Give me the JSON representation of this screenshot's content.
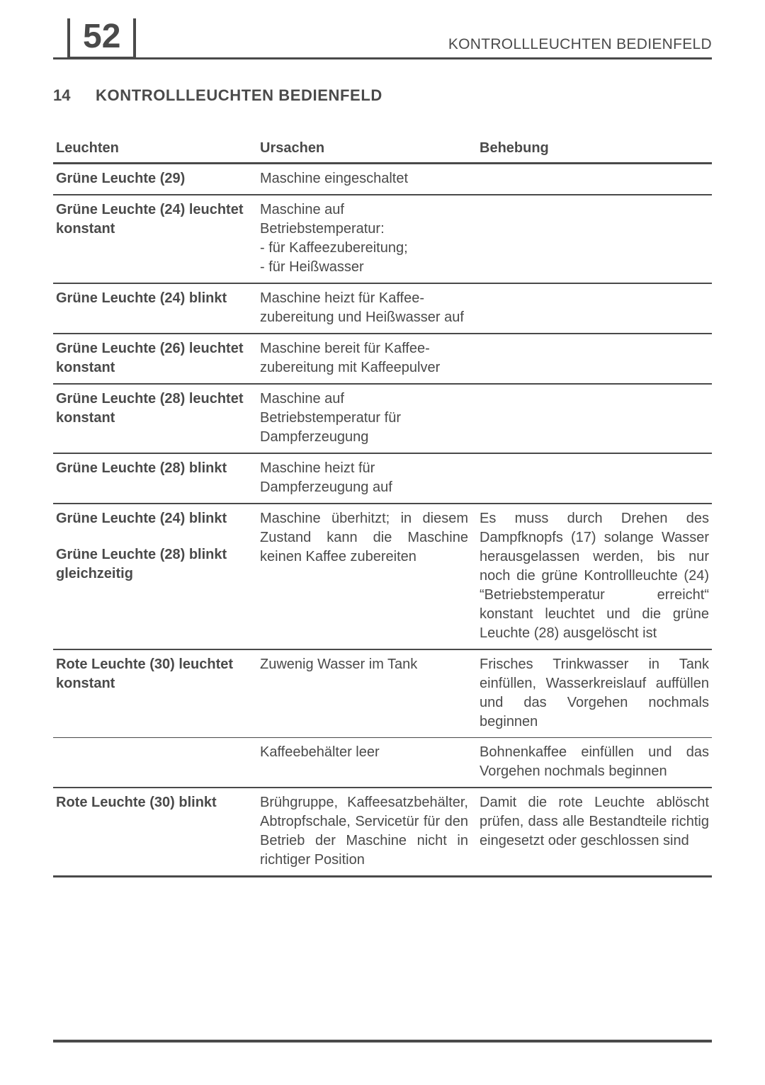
{
  "page_number": "52",
  "header_title": "KONTROLLLEUCHTEN BEDIENFELD",
  "section_number": "14",
  "section_title": "KONTROLLLEUCHTEN BEDIENFELD",
  "columns": {
    "c1": "Leuchten",
    "c2": "Ursachen",
    "c3": "Behebung"
  },
  "rows": [
    {
      "leuchten": "Grüne Leuchte (29)",
      "ursachen": "Maschine eingeschaltet",
      "behebung": ""
    },
    {
      "leuchten": "Grüne Leuchte (24) leuchtet konstant",
      "ursachen": "Maschine auf Betriebstemperatur:\n- für Kaffeezubereitung;\n- für Heißwasser",
      "behebung": ""
    },
    {
      "leuchten": "Grüne Leuchte (24) blinkt",
      "ursachen": "Maschine heizt für Kaffee-zubereitung und Heißwasser auf",
      "behebung": ""
    },
    {
      "leuchten": "Grüne Leuchte (26) leuchtet konstant",
      "ursachen": "Maschine bereit für Kaffee-zubereitung mit Kaffeepulver",
      "behebung": ""
    },
    {
      "leuchten": "Grüne Leuchte (28) leuchtet konstant",
      "ursachen": "Maschine auf Betriebstemperatur für Dampferzeugung",
      "behebung": ""
    },
    {
      "leuchten": "Grüne Leuchte (28) blinkt",
      "ursachen": "Maschine heizt für Dampferzeugung auf",
      "behebung": ""
    },
    {
      "leuchten_a": "Grüne Leuchte (24) blinkt",
      "leuchten_b": "Grüne Leuchte (28) blinkt gleichzeitig",
      "ursachen": "Maschine überhitzt; in diesem Zustand kann die Maschine keinen Kaffee zubereiten",
      "behebung": "Es muss durch Drehen des Dampfknopfs (17) solange Wasser herausgelassen werden, bis nur noch die grüne Kontrollleuchte (24) “Betriebstemperatur erreicht“ konstant leuchtet und die grüne Leuchte (28) ausgelöscht ist"
    },
    {
      "leuchten": "Rote Leuchte (30) leuchtet konstant",
      "ursachen": "Zuwenig Wasser im Tank",
      "behebung": "Frisches Trinkwasser in Tank einfüllen, Wasserkreislauf auffüllen und das Vorgehen nochmals beginnen"
    },
    {
      "leuchten": "",
      "ursachen": "Kaffeebehälter leer",
      "behebung": "Bohnenkaffee einfüllen und das Vorgehen nochmals beginnen"
    },
    {
      "leuchten": "Rote Leuchte (30) blinkt",
      "ursachen": "Brühgruppe, Kaffeesatzbehälter, Abtropfschale, Servicetür für den Betrieb der Maschine nicht in richtiger Position",
      "behebung": "Damit die rote Leuchte ablöscht prüfen, dass alle Bestandteile richtig eingesetzt oder geschlossen sind"
    }
  ],
  "colors": {
    "text": "#4a4a4a",
    "rule": "#4a4a4a",
    "bg": "#ffffff"
  },
  "typography": {
    "page_number_pt": 48,
    "header_title_pt": 21,
    "section_pt": 22,
    "body_pt": 20
  }
}
